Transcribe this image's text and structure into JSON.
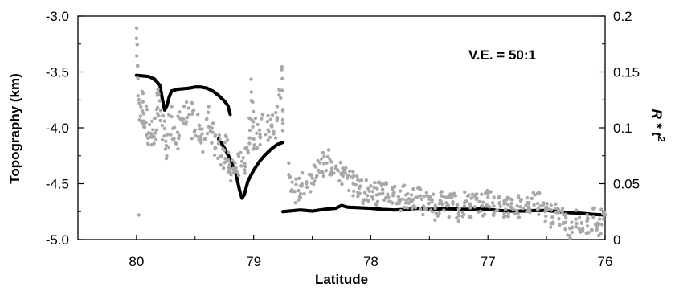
{
  "chart_data": {
    "type": "scatter",
    "annotation": "V.E. =  50:1",
    "xlabel": "Latitude",
    "ylabel_left": "Topography   (km)",
    "ylabel_right": "R * t",
    "ylabel_right_sup": "2",
    "x_axis": {
      "range": [
        80.5,
        76
      ],
      "reversed": true,
      "tick_labels": [
        "80",
        "79",
        "78",
        "77",
        "76"
      ],
      "tick_values": [
        80,
        79,
        78,
        77,
        76
      ]
    },
    "y_left_axis": {
      "range": [
        -5.0,
        -3.0
      ],
      "tick_labels": [
        "-3.0",
        "-3.5",
        "-4.0",
        "-4.5",
        "-5.0"
      ],
      "tick_values": [
        -3.0,
        -3.5,
        -4.0,
        -4.5,
        -5.0
      ]
    },
    "y_right_axis": {
      "range": [
        0,
        0.2
      ],
      "tick_labels": [
        "0.2",
        "0.15",
        "0.1",
        "0.05",
        "0"
      ],
      "tick_values": [
        0.2,
        0.15,
        0.1,
        0.05,
        0
      ]
    },
    "grid": false,
    "colors": {
      "topography": "#000000",
      "roughness": "#a8a8a8"
    },
    "series": [
      {
        "axis": "left",
        "points": [
          [
            80.0,
            -3.53
          ],
          [
            79.95,
            -3.535
          ],
          [
            79.9,
            -3.54
          ],
          [
            79.85,
            -3.56
          ],
          [
            79.8,
            -3.62
          ],
          [
            79.78,
            -3.74
          ],
          [
            79.76,
            -3.84
          ],
          [
            79.74,
            -3.8
          ],
          [
            79.72,
            -3.72
          ],
          [
            79.7,
            -3.67
          ],
          [
            79.65,
            -3.655
          ],
          [
            79.6,
            -3.65
          ],
          [
            79.55,
            -3.645
          ],
          [
            79.5,
            -3.635
          ],
          [
            79.45,
            -3.635
          ],
          [
            79.4,
            -3.645
          ],
          [
            79.35,
            -3.67
          ],
          [
            79.3,
            -3.71
          ],
          [
            79.25,
            -3.76
          ],
          [
            79.22,
            -3.8
          ],
          [
            79.2,
            -3.88
          ]
        ]
      },
      {
        "axis": "left",
        "points": [
          [
            79.3,
            -4.1
          ],
          [
            79.25,
            -4.18
          ],
          [
            79.2,
            -4.28
          ],
          [
            79.15,
            -4.42
          ],
          [
            79.12,
            -4.56
          ],
          [
            79.1,
            -4.63
          ],
          [
            79.08,
            -4.6
          ],
          [
            79.05,
            -4.48
          ],
          [
            79.0,
            -4.38
          ],
          [
            78.95,
            -4.3
          ],
          [
            78.9,
            -4.24
          ],
          [
            78.85,
            -4.19
          ],
          [
            78.8,
            -4.15
          ],
          [
            78.75,
            -4.13
          ]
        ]
      },
      {
        "axis": "left",
        "points": [
          [
            78.75,
            -4.75
          ],
          [
            78.7,
            -4.745
          ],
          [
            78.6,
            -4.735
          ],
          [
            78.5,
            -4.745
          ],
          [
            78.4,
            -4.73
          ],
          [
            78.3,
            -4.72
          ],
          [
            78.25,
            -4.695
          ],
          [
            78.2,
            -4.71
          ],
          [
            78.1,
            -4.715
          ],
          [
            78.0,
            -4.72
          ],
          [
            77.9,
            -4.73
          ],
          [
            77.8,
            -4.735
          ],
          [
            77.7,
            -4.73
          ],
          [
            77.6,
            -4.72
          ],
          [
            77.5,
            -4.73
          ],
          [
            77.4,
            -4.725
          ],
          [
            77.3,
            -4.725
          ],
          [
            77.2,
            -4.73
          ],
          [
            77.1,
            -4.725
          ],
          [
            77.0,
            -4.73
          ],
          [
            76.9,
            -4.74
          ],
          [
            76.8,
            -4.745
          ],
          [
            76.7,
            -4.745
          ],
          [
            76.6,
            -4.74
          ],
          [
            76.5,
            -4.74
          ],
          [
            76.4,
            -4.75
          ],
          [
            76.3,
            -4.76
          ],
          [
            76.2,
            -4.765
          ],
          [
            76.1,
            -4.775
          ],
          [
            76.0,
            -4.78
          ]
        ]
      },
      {
        "axis": "right",
        "points": [
          [
            80.0,
            0.18
          ],
          [
            79.98,
            0.125
          ],
          [
            79.95,
            0.115
          ],
          [
            79.92,
            0.105
          ],
          [
            79.88,
            0.095
          ],
          [
            79.85,
            0.092
          ],
          [
            79.82,
            0.118
          ],
          [
            79.78,
            0.102
          ],
          [
            79.75,
            0.088
          ],
          [
            79.7,
            0.11
          ],
          [
            79.65,
            0.096
          ],
          [
            79.6,
            0.104
          ],
          [
            79.55,
            0.112
          ],
          [
            79.5,
            0.098
          ],
          [
            79.45,
            0.09
          ],
          [
            79.4,
            0.108
          ],
          [
            79.35,
            0.096
          ],
          [
            79.3,
            0.086
          ],
          [
            79.25,
            0.08
          ],
          [
            79.22,
            0.072
          ],
          [
            79.2,
            0.06
          ],
          [
            79.15,
            0.064
          ],
          [
            79.1,
            0.07
          ],
          [
            79.05,
            0.08
          ],
          [
            79.02,
            0.132
          ],
          [
            79.0,
            0.09
          ],
          [
            78.95,
            0.098
          ],
          [
            78.9,
            0.094
          ],
          [
            78.85,
            0.102
          ],
          [
            78.8,
            0.108
          ],
          [
            78.76,
            0.152
          ],
          [
            78.75,
            0.104
          ],
          [
            79.98,
            0.022
          ],
          [
            78.7,
            0.058
          ],
          [
            78.65,
            0.043
          ],
          [
            78.6,
            0.048
          ],
          [
            78.55,
            0.05
          ],
          [
            78.5,
            0.055
          ],
          [
            78.45,
            0.062
          ],
          [
            78.4,
            0.068
          ],
          [
            78.35,
            0.072
          ],
          [
            78.3,
            0.064
          ],
          [
            78.25,
            0.058
          ],
          [
            78.2,
            0.055
          ],
          [
            78.15,
            0.05
          ],
          [
            78.1,
            0.046
          ],
          [
            78.05,
            0.042
          ],
          [
            78.0,
            0.048
          ],
          [
            77.95,
            0.04
          ],
          [
            77.9,
            0.045
          ],
          [
            77.85,
            0.038
          ],
          [
            77.8,
            0.042
          ],
          [
            77.75,
            0.036
          ],
          [
            77.7,
            0.04
          ],
          [
            77.65,
            0.034
          ],
          [
            77.6,
            0.038
          ],
          [
            77.55,
            0.03
          ],
          [
            77.5,
            0.036
          ],
          [
            77.45,
            0.028
          ],
          [
            77.4,
            0.034
          ],
          [
            77.35,
            0.03
          ],
          [
            77.3,
            0.032
          ],
          [
            77.25,
            0.027
          ],
          [
            77.2,
            0.033
          ],
          [
            77.15,
            0.03
          ],
          [
            77.1,
            0.036
          ],
          [
            77.05,
            0.03
          ],
          [
            77.0,
            0.038
          ],
          [
            76.95,
            0.03
          ],
          [
            76.9,
            0.033
          ],
          [
            76.85,
            0.027
          ],
          [
            76.8,
            0.036
          ],
          [
            76.75,
            0.03
          ],
          [
            76.7,
            0.028
          ],
          [
            76.65,
            0.033
          ],
          [
            76.6,
            0.04
          ],
          [
            76.55,
            0.03
          ],
          [
            76.5,
            0.026
          ],
          [
            76.45,
            0.02
          ],
          [
            76.4,
            0.024
          ],
          [
            76.35,
            0.015
          ],
          [
            76.3,
            0.01
          ],
          [
            76.25,
            0.018
          ],
          [
            76.2,
            0.015
          ],
          [
            76.15,
            0.012
          ],
          [
            76.1,
            0.02
          ],
          [
            76.05,
            0.014
          ],
          [
            76.0,
            0.022
          ]
        ]
      }
    ]
  }
}
